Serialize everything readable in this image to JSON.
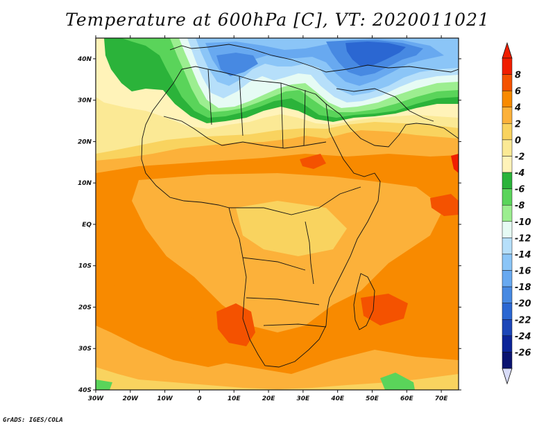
{
  "title": "Temperature at 600hPa [C], VT: 2020011021",
  "footer": "GrADS: IGES/COLA",
  "map": {
    "lon_range": [
      -30,
      75
    ],
    "lat_range": [
      -40,
      45
    ],
    "lat_ticks": [
      "40N",
      "30N",
      "20N",
      "10N",
      "EQ",
      "10S",
      "20S",
      "30S",
      "40S"
    ],
    "lat_values": [
      40,
      30,
      20,
      10,
      0,
      -10,
      -20,
      -30,
      -40
    ],
    "lon_ticks": [
      "30W",
      "20W",
      "10W",
      "0",
      "10E",
      "20E",
      "30E",
      "40E",
      "50E",
      "60E",
      "70E"
    ],
    "lon_values": [
      -30,
      -20,
      -10,
      0,
      10,
      20,
      30,
      40,
      50,
      60,
      70
    ]
  },
  "colorbar": {
    "labels": [
      "8",
      "6",
      "4",
      "2",
      "0",
      "-2",
      "-4",
      "-6",
      "-8",
      "-10",
      "-12",
      "-14",
      "-16",
      "-18",
      "-20",
      "-22",
      "-24",
      "-26"
    ],
    "colors": [
      "#f01e00",
      "#f45200",
      "#f88a00",
      "#fcb13a",
      "#f9d35f",
      "#fbe995",
      "#fff3b9",
      "#2bb33a",
      "#5ad45a",
      "#9cee90",
      "#e6fbf4",
      "#b6dffa",
      "#8bc5f7",
      "#68a9f0",
      "#4789e2",
      "#2b67d2",
      "#1c46b8",
      "#0c2498",
      "#0a1370"
    ],
    "top_arrow_color": "#f01e00",
    "bottom_arrow_color": "#d8dcf8"
  }
}
